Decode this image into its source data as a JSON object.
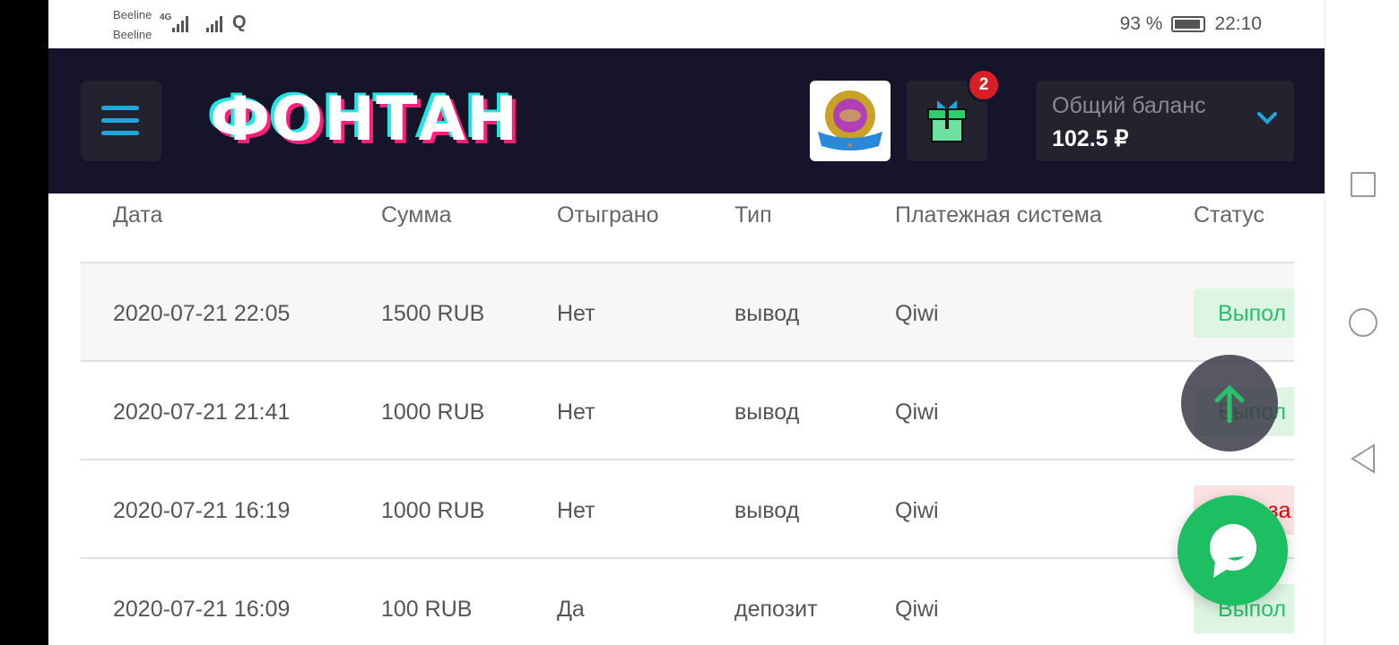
{
  "status_bar": {
    "carrier1": "Beeline",
    "carrier2": "Beeline",
    "network": "4G",
    "battery": "93 %",
    "battery_level": 93,
    "time": "22:10"
  },
  "header": {
    "logo": "ФОНТАН",
    "gift_count": "2",
    "balance_label": "Общий баланс",
    "balance_value": "102.5 ₽"
  },
  "table": {
    "columns": [
      "Дата",
      "Сумма",
      "Отыграно",
      "Тип",
      "Платежная система",
      "Статус"
    ],
    "rows": [
      {
        "date": "2020-07-21 22:05",
        "amount": "1500 RUB",
        "wagered": "Нет",
        "type": "вывод",
        "system": "Qiwi",
        "status": "Выпол",
        "status_kind": "success"
      },
      {
        "date": "2020-07-21 21:41",
        "amount": "1000 RUB",
        "wagered": "Нет",
        "type": "вывод",
        "system": "Qiwi",
        "status": "Выпол",
        "status_kind": "success"
      },
      {
        "date": "2020-07-21 16:19",
        "amount": "1000 RUB",
        "wagered": "Нет",
        "type": "вывод",
        "system": "Qiwi",
        "status": "Отказа",
        "status_kind": "error"
      },
      {
        "date": "2020-07-21 16:09",
        "amount": "100 RUB",
        "wagered": "Да",
        "type": "депозит",
        "system": "Qiwi",
        "status": "Выпол",
        "status_kind": "success"
      }
    ]
  },
  "colors": {
    "header_bg": "#15142a",
    "accent": "#1fa7db",
    "success": "#28c068",
    "error": "#e00000",
    "chat": "#1dbf63"
  }
}
